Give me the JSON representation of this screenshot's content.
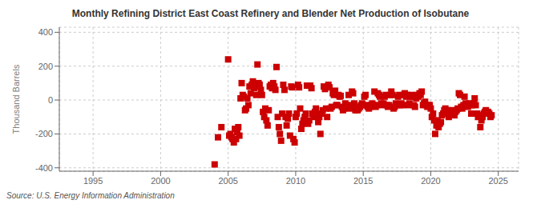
{
  "chart_data": {
    "type": "scatter",
    "title": "Monthly Refining District East Coast Refinery and Blender Net Production of Isobutane",
    "y_label": "Thousand Barrels",
    "annotations": [
      "Source: U.S. Energy Information Administration"
    ],
    "color": "#cc0000",
    "marker": "square",
    "grid": true,
    "xlim": [
      1992.5,
      2026.5
    ],
    "ylim": [
      -420,
      430
    ],
    "xticks": [
      1995,
      2000,
      2005,
      2010,
      2015,
      2020,
      2025
    ],
    "yticks": [
      -400,
      -200,
      0,
      200,
      400
    ],
    "x": [
      2004.0,
      2004.25,
      2004.5,
      2005.0,
      2005.08,
      2005.17,
      2005.25,
      2005.33,
      2005.42,
      2005.5,
      2005.58,
      2005.67,
      2005.75,
      2005.83,
      2005.92,
      2006.0,
      2006.08,
      2006.17,
      2006.25,
      2006.33,
      2006.42,
      2006.5,
      2006.58,
      2006.67,
      2006.75,
      2006.83,
      2006.92,
      2007.0,
      2007.08,
      2007.17,
      2007.25,
      2007.33,
      2007.42,
      2007.5,
      2007.58,
      2007.67,
      2007.75,
      2007.83,
      2007.92,
      2008.0,
      2008.08,
      2008.17,
      2008.25,
      2008.33,
      2008.42,
      2008.5,
      2008.58,
      2008.67,
      2008.75,
      2008.83,
      2008.92,
      2009.0,
      2009.08,
      2009.17,
      2009.25,
      2009.33,
      2009.42,
      2009.5,
      2009.58,
      2009.67,
      2009.75,
      2009.83,
      2009.92,
      2010.0,
      2010.08,
      2010.17,
      2010.25,
      2010.33,
      2010.42,
      2010.5,
      2010.58,
      2010.67,
      2010.75,
      2010.83,
      2010.92,
      2011.0,
      2011.08,
      2011.17,
      2011.25,
      2011.33,
      2011.42,
      2011.5,
      2011.58,
      2011.67,
      2011.75,
      2011.83,
      2011.92,
      2012.0,
      2012.08,
      2012.17,
      2012.25,
      2012.33,
      2012.42,
      2012.5,
      2012.58,
      2012.67,
      2012.75,
      2012.83,
      2012.92,
      2013.0,
      2013.08,
      2013.17,
      2013.25,
      2013.33,
      2013.42,
      2013.5,
      2013.58,
      2013.67,
      2013.75,
      2013.83,
      2013.92,
      2014.0,
      2014.08,
      2014.17,
      2014.25,
      2014.33,
      2014.42,
      2014.5,
      2014.58,
      2014.67,
      2014.75,
      2014.83,
      2014.92,
      2015.0,
      2015.08,
      2015.17,
      2015.25,
      2015.33,
      2015.42,
      2015.5,
      2015.58,
      2015.67,
      2015.75,
      2015.83,
      2015.92,
      2016.0,
      2016.08,
      2016.17,
      2016.25,
      2016.33,
      2016.42,
      2016.5,
      2016.58,
      2016.67,
      2016.75,
      2016.83,
      2016.92,
      2017.0,
      2017.08,
      2017.17,
      2017.25,
      2017.33,
      2017.42,
      2017.5,
      2017.58,
      2017.67,
      2017.75,
      2017.83,
      2017.92,
      2018.0,
      2018.08,
      2018.17,
      2018.25,
      2018.33,
      2018.42,
      2018.5,
      2018.58,
      2018.67,
      2018.75,
      2018.83,
      2018.92,
      2019.0,
      2019.08,
      2019.17,
      2019.25,
      2019.33,
      2019.42,
      2019.5,
      2019.58,
      2019.67,
      2019.75,
      2019.83,
      2019.92,
      2020.0,
      2020.08,
      2020.17,
      2020.25,
      2020.33,
      2020.42,
      2020.5,
      2020.58,
      2020.67,
      2020.75,
      2020.83,
      2020.92,
      2021.0,
      2021.08,
      2021.17,
      2021.25,
      2021.33,
      2021.42,
      2021.5,
      2021.58,
      2021.67,
      2021.75,
      2021.83,
      2021.92,
      2022.0,
      2022.08,
      2022.17,
      2022.25,
      2022.33,
      2022.42,
      2022.5,
      2022.58,
      2022.67,
      2022.75,
      2022.83,
      2022.92,
      2023.0,
      2023.08,
      2023.17,
      2023.25,
      2023.33,
      2023.42,
      2023.5,
      2023.58,
      2023.67,
      2023.75,
      2023.83,
      2023.92,
      2024.0,
      2024.08,
      2024.17,
      2024.25,
      2024.33,
      2024.42,
      2024.5
    ],
    "values": [
      -380,
      -220,
      -160,
      240,
      -210,
      -200,
      -220,
      -230,
      -250,
      -170,
      -230,
      -190,
      -160,
      -210,
      10,
      100,
      30,
      20,
      -60,
      -50,
      10,
      -30,
      80,
      40,
      90,
      110,
      70,
      80,
      30,
      210,
      100,
      90,
      60,
      30,
      -70,
      -100,
      -50,
      -120,
      -150,
      -60,
      80,
      90,
      70,
      100,
      80,
      60,
      195,
      -100,
      -160,
      -200,
      -240,
      -80,
      90,
      60,
      -100,
      -150,
      -110,
      -80,
      -210,
      80,
      75,
      -230,
      -250,
      -100,
      -80,
      90,
      75,
      -50,
      -170,
      -140,
      -120,
      -100,
      -80,
      85,
      -140,
      -120,
      85,
      70,
      -80,
      -100,
      -70,
      -50,
      -80,
      -130,
      -100,
      -200,
      -80,
      -60,
      80,
      65,
      -50,
      -100,
      90,
      75,
      -50,
      -40,
      40,
      30,
      55,
      -30,
      -30,
      30,
      20,
      25,
      -40,
      -60,
      -50,
      -20,
      -30,
      -40,
      30,
      -50,
      -30,
      50,
      40,
      -20,
      -60,
      -50,
      -60,
      -50,
      -40,
      -30,
      -20,
      -30,
      20,
      30,
      -30,
      -40,
      -50,
      -40,
      -30,
      -20,
      -30,
      50,
      -40,
      -30,
      40,
      30,
      20,
      -20,
      -30,
      -20,
      20,
      30,
      -30,
      -40,
      -30,
      30,
      50,
      30,
      -50,
      -40,
      -20,
      -30,
      20,
      30,
      -30,
      -20,
      -30,
      30,
      40,
      20,
      30,
      -30,
      -20,
      20,
      30,
      20,
      -30,
      -40,
      10,
      30,
      20,
      40,
      30,
      50,
      -30,
      -20,
      -10,
      -30,
      -40,
      -30,
      -30,
      -50,
      -100,
      -80,
      -120,
      -200,
      -150,
      -120,
      -160,
      -140,
      -130,
      -90,
      -80,
      -60,
      -50,
      -70,
      -60,
      -100,
      -80,
      -70,
      -60,
      -80,
      -90,
      -70,
      -60,
      -50,
      40,
      30,
      -40,
      -50,
      -30,
      20,
      -20,
      -30,
      -40,
      -20,
      -30,
      -80,
      -30,
      -20,
      10,
      -30,
      -80,
      -100,
      -90,
      -160,
      -120,
      -100,
      -80,
      -70,
      -60,
      -80,
      -70,
      -80,
      -100,
      -90
    ]
  }
}
